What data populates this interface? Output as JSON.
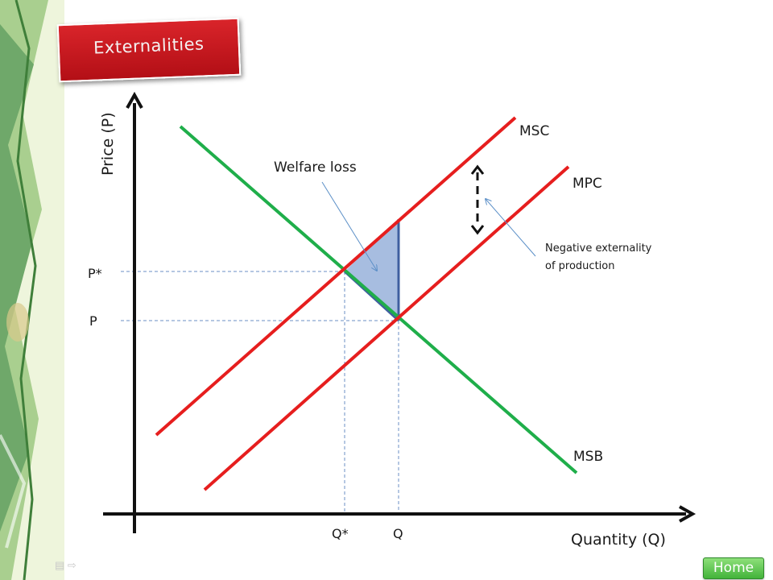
{
  "slide": {
    "title": "Externalities"
  },
  "axes": {
    "y_label": "Price (P)",
    "x_label": "Quantity (Q)"
  },
  "curves": {
    "msc": "MSC",
    "mpc": "MPC",
    "msb": "MSB"
  },
  "equilibrium": {
    "p_star": "P*",
    "p": "P",
    "q_star": "Q*",
    "q": "Q"
  },
  "annotations": {
    "welfare_loss": "Welfare loss",
    "externality_line1": "Negative externality",
    "externality_line2": "of production"
  },
  "nav": {
    "home": "Home"
  },
  "colors": {
    "supply": "#e61e1e",
    "demand": "#1fae4a",
    "welfare_area": "#a7bde0",
    "banner": "#c8161c"
  }
}
